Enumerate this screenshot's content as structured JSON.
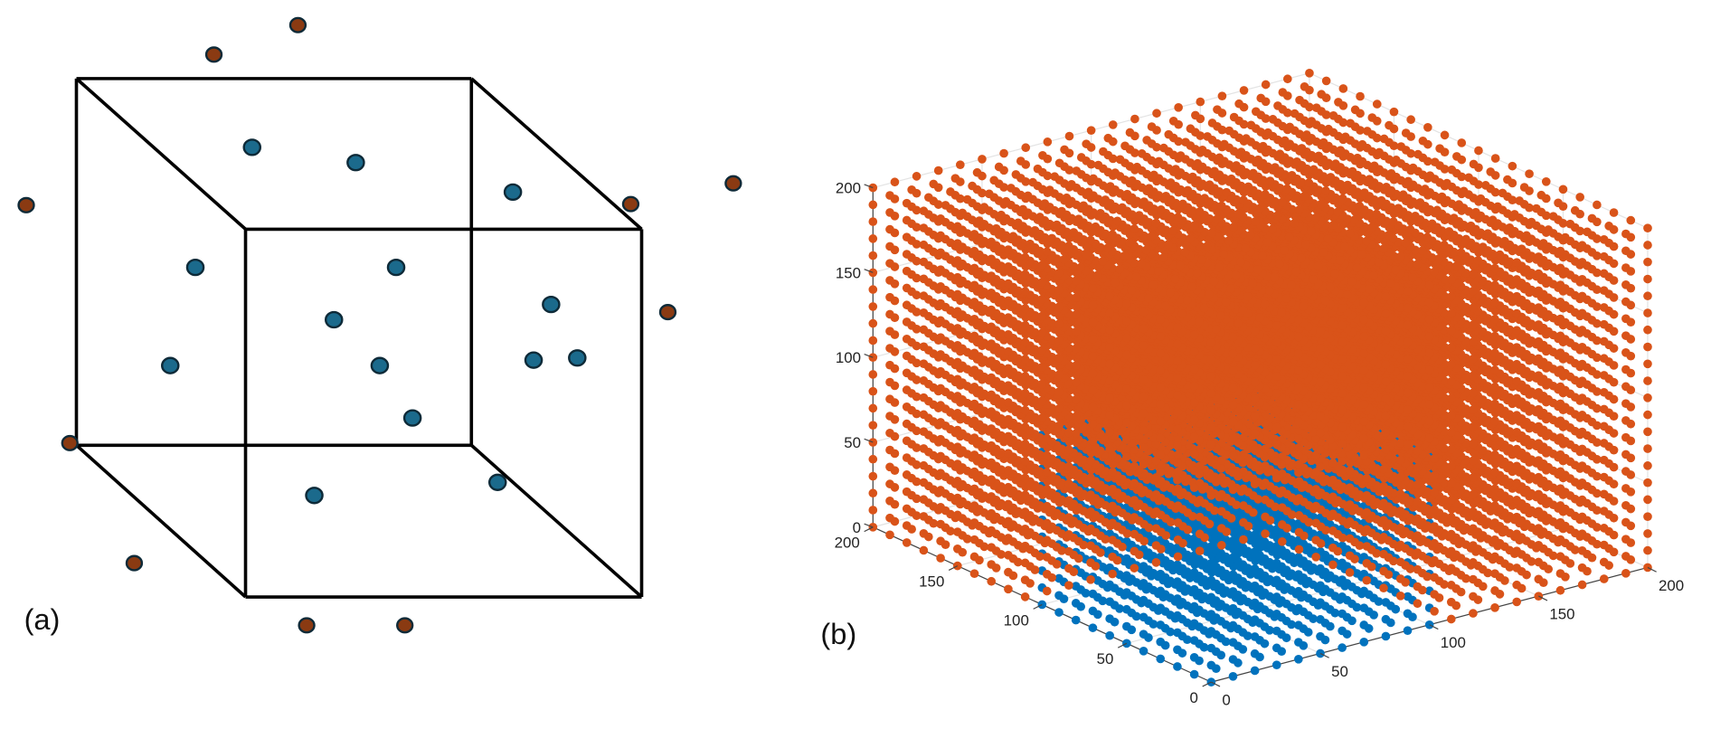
{
  "panel_a": {
    "label": "(a)",
    "colors": {
      "inside_point": "#1b6a8c",
      "outside_point": "#8a3a12",
      "point_outline": "#0e2a38",
      "cube_edge": "#000000"
    }
  },
  "panel_b": {
    "label": "(b)"
  },
  "chart_data": {
    "type": "scatter3d",
    "grid": {
      "min": 0,
      "max": 200,
      "step": 10
    },
    "xlim": [
      0,
      200
    ],
    "ylim": [
      0,
      200
    ],
    "zlim": [
      0,
      200
    ],
    "x_ticks": [
      "0",
      "50",
      "100",
      "150",
      "200"
    ],
    "y_ticks": [
      "0",
      "50",
      "100",
      "150",
      "200"
    ],
    "z_ticks": [
      "0",
      "50",
      "100",
      "150",
      "200"
    ],
    "series": [
      {
        "region": "x<=100, y<=100, z<=100",
        "color": "#0072BD"
      },
      {
        "region": "all other grid points",
        "color": "#D95319"
      }
    ],
    "grid_lines": true
  }
}
